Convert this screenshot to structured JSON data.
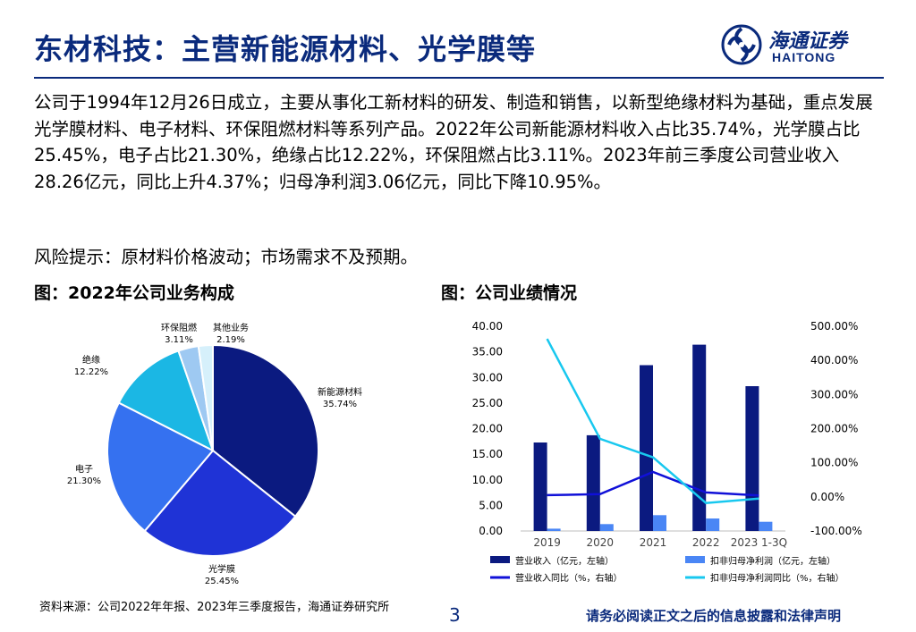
{
  "header": {
    "title": "东材科技：主营新能源材料、光学膜等",
    "logo_cn": "海通证券",
    "logo_en": "HAITONG",
    "logo_icon": "haitong-logo-icon"
  },
  "body": {
    "paragraph": "公司于1994年12月26日成立，主要从事化工新材料的研发、制造和销售，以新型绝缘材料为基础，重点发展光学膜材料、电子材料、环保阻燃材料等系列产品。2022年公司新能源材料收入占比35.74%，光学膜占比25.45%，电子占比21.30%，绝缘占比12.22%，环保阻燃占比3.11%。2023年前三季度公司营业收入28.26亿元，同比上升4.37%；归母净利润3.06亿元，同比下降10.95%。",
    "risk": "风险提示：原材料价格波动；市场需求不及预期。"
  },
  "figures": {
    "left_title": "图：2022年公司业务构成",
    "right_title": "图：公司业绩情况"
  },
  "chart_data": [
    {
      "type": "pie",
      "title": "图：2022年公司业务构成",
      "slices": [
        {
          "name": "新能源材料",
          "value": 35.74,
          "label": "35.74%",
          "color": "#0b1a80"
        },
        {
          "name": "光学膜",
          "value": 25.45,
          "label": "25.45%",
          "color": "#1f33d6"
        },
        {
          "name": "电子",
          "value": 21.3,
          "label": "21.30%",
          "color": "#3571f0"
        },
        {
          "name": "绝缘",
          "value": 12.22,
          "label": "12.22%",
          "color": "#1bb7e4"
        },
        {
          "name": "环保阻燃",
          "value": 3.11,
          "label": "3.11%",
          "color": "#9ec9f2"
        },
        {
          "name": "其他业务",
          "value": 2.19,
          "label": "2.19%",
          "color": "#d6f0fb"
        }
      ]
    },
    {
      "type": "bar",
      "title": "图：公司业绩情况",
      "categories": [
        "2019",
        "2020",
        "2021",
        "2022",
        "2023 1-3Q"
      ],
      "left_axis": {
        "ylim": [
          0,
          40
        ],
        "ticks": [
          "0.00",
          "5.00",
          "10.00",
          "15.00",
          "20.00",
          "25.00",
          "30.00",
          "35.00",
          "40.00"
        ]
      },
      "right_axis": {
        "ylim": [
          -100,
          500
        ],
        "ticks": [
          "-100.00%",
          "0.00%",
          "100.00%",
          "200.00%",
          "300.00%",
          "400.00%",
          "500.00%"
        ]
      },
      "series": [
        {
          "name": "营业收入（亿元，左轴）",
          "kind": "bar",
          "axis": "left",
          "color": "#0b1a80",
          "values": [
            17.3,
            18.7,
            32.4,
            36.4,
            28.3
          ]
        },
        {
          "name": "扣非归母净利润（亿元，左轴）",
          "kind": "bar",
          "axis": "left",
          "color": "#4a86f5",
          "values": [
            0.45,
            1.35,
            3.1,
            2.45,
            1.8
          ]
        },
        {
          "name": "营业收入同比（%，右轴）",
          "kind": "line",
          "axis": "right",
          "color": "#1010d8",
          "values": [
            5,
            8,
            73,
            13,
            4
          ]
        },
        {
          "name": "扣非归母净利润同比（%，右轴）",
          "kind": "line",
          "axis": "right",
          "color": "#18c8ef",
          "values": [
            463,
            170,
            116,
            -18,
            -5
          ]
        }
      ]
    }
  ],
  "footer": {
    "source": "资料来源：公司2022年年报、2023年三季度报告，海通证券研究所",
    "page": "3",
    "disclaimer": "请务必阅读正文之后的信息披露和法律声明"
  }
}
